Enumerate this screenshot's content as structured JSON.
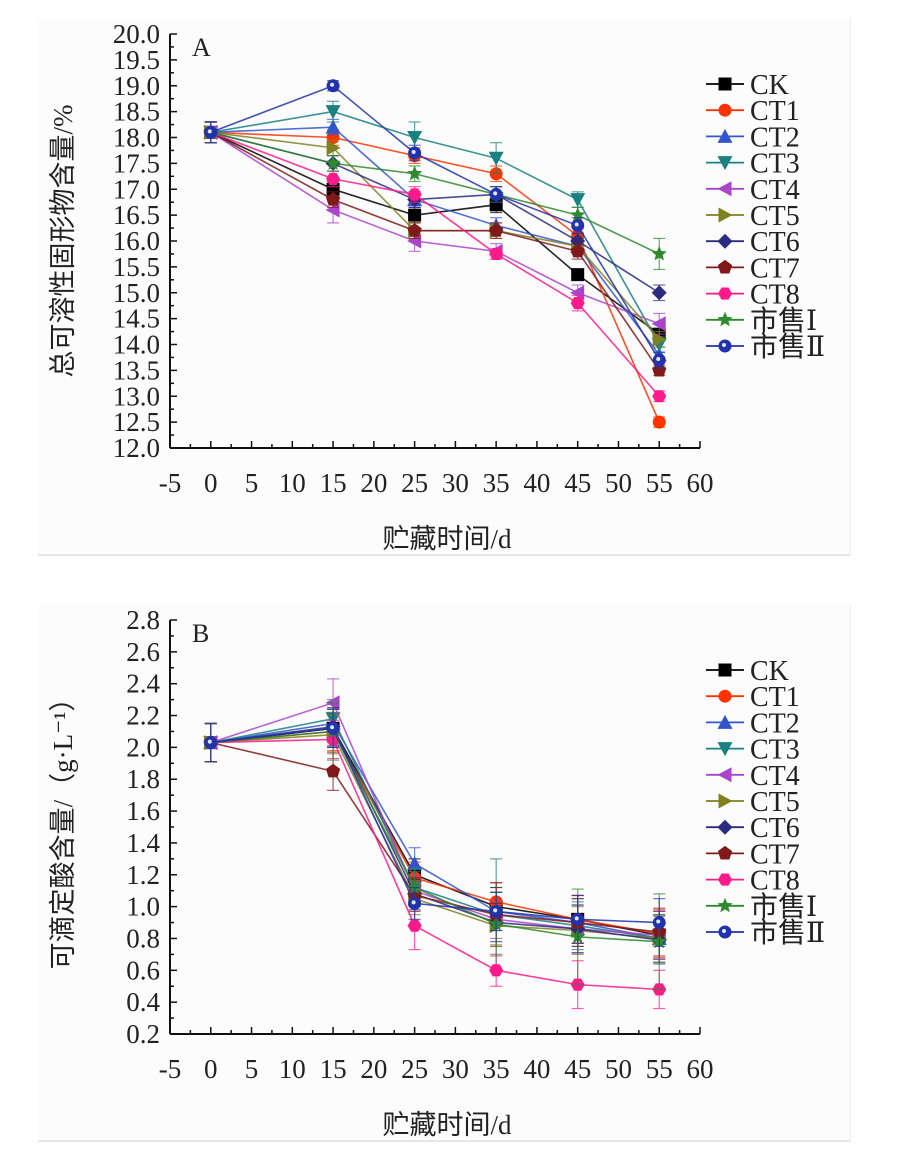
{
  "chart_data": [
    {
      "panel_label": "A",
      "type": "line",
      "title": "",
      "xlabel": "贮藏时间/d",
      "ylabel": "总可溶性固形物含量/%",
      "xlim": [
        -5,
        60
      ],
      "ylim": [
        12.0,
        20.0
      ],
      "xticks": [
        "-5",
        "0",
        "5",
        "10",
        "15",
        "20",
        "25",
        "30",
        "35",
        "40",
        "45",
        "50",
        "55",
        "60"
      ],
      "yticks": [
        "20.0",
        "19.5",
        "19.0",
        "18.5",
        "18.0",
        "17.5",
        "17.0",
        "16.5",
        "16.0",
        "15.5",
        "15.0",
        "14.5",
        "14.0",
        "13.5",
        "13.0",
        "12.5",
        "12.0"
      ],
      "grid": false,
      "legend_position": "right",
      "x": [
        0,
        15,
        25,
        35,
        45,
        55
      ],
      "series": [
        {
          "name": "CK",
          "marker": "square",
          "color": "#000000",
          "values": [
            18.1,
            17.0,
            16.5,
            16.7,
            15.35,
            14.2
          ],
          "errors": [
            0.2,
            0.15,
            0.15,
            0.15,
            0.1,
            0.1
          ]
        },
        {
          "name": "CT1",
          "marker": "circle",
          "color": "#ff3300",
          "values": [
            18.1,
            18.0,
            17.65,
            17.3,
            16.1,
            12.5
          ],
          "errors": [
            0.2,
            0.15,
            0.15,
            0.15,
            0.15,
            0.1
          ]
        },
        {
          "name": "CT2",
          "marker": "triangle-up",
          "color": "#3355cc",
          "values": [
            18.1,
            18.2,
            16.8,
            16.3,
            15.9,
            13.8
          ],
          "errors": [
            0.2,
            0.15,
            0.15,
            0.15,
            0.15,
            0.15
          ]
        },
        {
          "name": "CT3",
          "marker": "triangle-down",
          "color": "#1a8080",
          "values": [
            18.1,
            18.5,
            18.0,
            17.6,
            16.8,
            14.0
          ],
          "errors": [
            0.2,
            0.2,
            0.3,
            0.3,
            0.15,
            0.15
          ]
        },
        {
          "name": "CT4",
          "marker": "triangle-left",
          "color": "#aa44cc",
          "values": [
            18.1,
            16.6,
            16.0,
            15.8,
            15.0,
            14.4
          ],
          "errors": [
            0.2,
            0.25,
            0.2,
            0.15,
            0.15,
            0.2
          ]
        },
        {
          "name": "CT5",
          "marker": "triangle-right",
          "color": "#808020",
          "values": [
            18.1,
            17.8,
            16.2,
            16.2,
            15.9,
            14.1
          ],
          "errors": [
            0.2,
            0.15,
            0.15,
            0.15,
            0.15,
            0.15
          ]
        },
        {
          "name": "CT6",
          "marker": "diamond",
          "color": "#2b2b80",
          "values": [
            18.1,
            17.5,
            16.8,
            16.9,
            16.0,
            15.0
          ],
          "errors": [
            0.2,
            0.15,
            0.15,
            0.15,
            0.15,
            0.15
          ]
        },
        {
          "name": "CT7",
          "marker": "pentagon",
          "color": "#801a1a",
          "values": [
            18.1,
            16.8,
            16.2,
            16.2,
            15.8,
            13.5
          ],
          "errors": [
            0.2,
            0.15,
            0.15,
            0.15,
            0.15,
            0.1
          ]
        },
        {
          "name": "CT8",
          "marker": "hexagon",
          "color": "#ff1a8c",
          "values": [
            18.1,
            17.2,
            16.9,
            15.75,
            14.8,
            13.0
          ],
          "errors": [
            0.2,
            0.15,
            0.15,
            0.1,
            0.15,
            0.1
          ]
        },
        {
          "name": "市售Ⅰ",
          "marker": "star",
          "color": "#2d8a2d",
          "values": [
            18.1,
            17.5,
            17.3,
            16.9,
            16.5,
            15.75
          ],
          "errors": [
            0.2,
            0.15,
            0.15,
            0.15,
            0.15,
            0.3
          ]
        },
        {
          "name": "市售Ⅱ",
          "marker": "circle-dot",
          "color": "#2233aa",
          "values": [
            18.1,
            19.0,
            17.7,
            16.9,
            16.3,
            13.7
          ],
          "errors": [
            0.2,
            0.1,
            0.15,
            0.15,
            0.15,
            0.15
          ]
        }
      ]
    },
    {
      "panel_label": "B",
      "type": "line",
      "title": "",
      "xlabel": "贮藏时间/d",
      "ylabel": "可滴定酸含量/（g·L⁻¹）",
      "xlim": [
        -5,
        60
      ],
      "ylim": [
        0.2,
        2.8
      ],
      "xticks": [
        "-5",
        "0",
        "5",
        "10",
        "15",
        "20",
        "25",
        "30",
        "35",
        "40",
        "45",
        "50",
        "55",
        "60"
      ],
      "yticks": [
        "2.8",
        "2.6",
        "2.4",
        "2.2",
        "2.0",
        "1.8",
        "1.6",
        "1.4",
        "1.2",
        "1.0",
        "0.8",
        "0.6",
        "0.4",
        "0.2"
      ],
      "grid": false,
      "legend_position": "right",
      "x": [
        0,
        15,
        25,
        35,
        45,
        55
      ],
      "series": [
        {
          "name": "CK",
          "marker": "square",
          "color": "#000000",
          "values": [
            2.03,
            2.12,
            1.2,
            1.0,
            0.92,
            0.82
          ],
          "errors": [
            0.12,
            0.12,
            0.1,
            0.12,
            0.15,
            0.15
          ]
        },
        {
          "name": "CT1",
          "marker": "circle",
          "color": "#ff3300",
          "values": [
            2.03,
            2.1,
            1.18,
            1.03,
            0.92,
            0.83
          ],
          "errors": [
            0.12,
            0.12,
            0.1,
            0.12,
            0.15,
            0.15
          ]
        },
        {
          "name": "CT2",
          "marker": "triangle-up",
          "color": "#3355cc",
          "values": [
            2.03,
            2.15,
            1.27,
            0.97,
            0.9,
            0.8
          ],
          "errors": [
            0.12,
            0.12,
            0.1,
            0.12,
            0.15,
            0.15
          ]
        },
        {
          "name": "CT3",
          "marker": "triangle-down",
          "color": "#1a8080",
          "values": [
            2.03,
            2.18,
            1.12,
            0.95,
            0.88,
            0.8
          ],
          "errors": [
            0.12,
            0.12,
            0.1,
            0.35,
            0.15,
            0.15
          ]
        },
        {
          "name": "CT4",
          "marker": "triangle-left",
          "color": "#aa44cc",
          "values": [
            2.03,
            2.28,
            1.1,
            0.92,
            0.86,
            0.82
          ],
          "errors": [
            0.12,
            0.15,
            0.1,
            0.12,
            0.15,
            0.15
          ]
        },
        {
          "name": "CT5",
          "marker": "triangle-right",
          "color": "#808020",
          "values": [
            2.03,
            2.08,
            1.05,
            0.88,
            0.85,
            0.8
          ],
          "errors": [
            0.12,
            0.12,
            0.1,
            0.12,
            0.15,
            0.15
          ]
        },
        {
          "name": "CT6",
          "marker": "diamond",
          "color": "#2b2b80",
          "values": [
            2.03,
            2.13,
            1.08,
            0.9,
            0.86,
            0.79
          ],
          "errors": [
            0.12,
            0.12,
            0.1,
            0.12,
            0.15,
            0.15
          ]
        },
        {
          "name": "CT7",
          "marker": "pentagon",
          "color": "#801a1a",
          "values": [
            2.03,
            1.85,
            1.07,
            0.95,
            0.9,
            0.84
          ],
          "errors": [
            0.12,
            0.12,
            0.1,
            0.2,
            0.15,
            0.15
          ]
        },
        {
          "name": "CT8",
          "marker": "hexagon",
          "color": "#ff1a8c",
          "values": [
            2.03,
            2.05,
            0.88,
            0.6,
            0.51,
            0.48
          ],
          "errors": [
            0.12,
            0.12,
            0.15,
            0.1,
            0.15,
            0.12
          ]
        },
        {
          "name": "市售Ⅰ",
          "marker": "star",
          "color": "#2d8a2d",
          "values": [
            2.03,
            2.1,
            1.12,
            0.89,
            0.81,
            0.78
          ],
          "errors": [
            0.12,
            0.18,
            0.12,
            0.2,
            0.3,
            0.3
          ]
        },
        {
          "name": "市售Ⅱ",
          "marker": "circle-dot",
          "color": "#2233aa",
          "values": [
            2.03,
            2.12,
            1.02,
            0.97,
            0.92,
            0.9
          ],
          "errors": [
            0.12,
            0.12,
            0.1,
            0.12,
            0.15,
            0.15
          ]
        }
      ]
    }
  ]
}
